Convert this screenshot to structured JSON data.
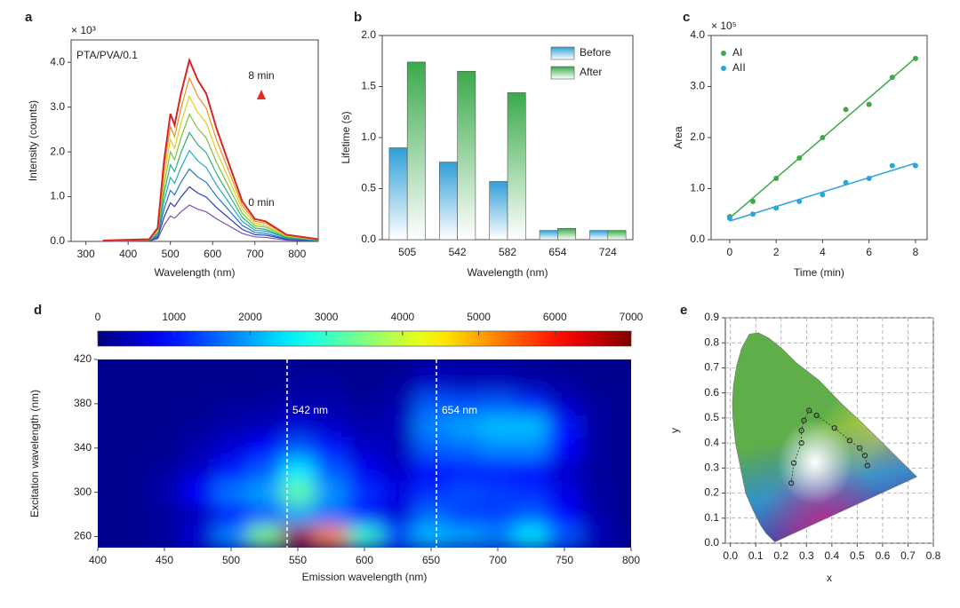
{
  "chart_data": [
    {
      "type": "line",
      "panel": "a",
      "annotations": [
        "PTA/PVA/0.1",
        "8 min",
        "0 min"
      ],
      "multiplier": "× 10³",
      "x_label": "Wavelength (nm)",
      "y_label": "Intensity (counts)",
      "xlim": [
        265,
        850
      ],
      "ylim": [
        0,
        4.5
      ],
      "xticks": [
        300,
        400,
        500,
        600,
        700,
        800
      ],
      "yticks": [
        {
          "value": 0,
          "label": "0.0"
        },
        {
          "value": 1,
          "label": "1.0"
        },
        {
          "value": 2,
          "label": "2.0"
        },
        {
          "value": 3,
          "label": "3.0"
        },
        {
          "value": 4,
          "label": "4.0"
        }
      ],
      "x": [
        340,
        450,
        470,
        485,
        500,
        510,
        525,
        545,
        565,
        585,
        610,
        640,
        670,
        700,
        725,
        775,
        850
      ],
      "series": [
        {
          "color": "#7b52ae",
          "values": [
            0.0,
            0.01,
            0.06,
            0.36,
            0.57,
            0.52,
            0.66,
            0.81,
            0.72,
            0.66,
            0.5,
            0.34,
            0.18,
            0.1,
            0.09,
            0.03,
            0.01
          ]
        },
        {
          "color": "#2b3bb8",
          "values": [
            0.01,
            0.02,
            0.09,
            0.54,
            0.86,
            0.78,
            0.99,
            1.22,
            1.08,
            0.99,
            0.75,
            0.51,
            0.27,
            0.15,
            0.14,
            0.05,
            0.02
          ]
        },
        {
          "color": "#1f78c8",
          "values": [
            0.01,
            0.02,
            0.12,
            0.72,
            1.14,
            1.04,
            1.32,
            1.62,
            1.44,
            1.32,
            1.0,
            0.68,
            0.36,
            0.2,
            0.18,
            0.06,
            0.02
          ]
        },
        {
          "color": "#22a7c9",
          "values": [
            0.01,
            0.03,
            0.15,
            0.9,
            1.43,
            1.3,
            1.65,
            2.03,
            1.8,
            1.65,
            1.25,
            0.85,
            0.45,
            0.25,
            0.23,
            0.08,
            0.03
          ]
        },
        {
          "color": "#2bb07a",
          "values": [
            0.01,
            0.03,
            0.18,
            1.08,
            1.71,
            1.56,
            1.98,
            2.43,
            2.16,
            1.98,
            1.5,
            1.02,
            0.54,
            0.3,
            0.27,
            0.09,
            0.03
          ]
        },
        {
          "color": "#7cc23a",
          "values": [
            0.01,
            0.04,
            0.21,
            1.26,
            2.0,
            1.82,
            2.31,
            2.84,
            2.52,
            2.31,
            1.75,
            1.19,
            0.63,
            0.35,
            0.32,
            0.11,
            0.04
          ]
        },
        {
          "color": "#e0d020",
          "values": [
            0.02,
            0.04,
            0.24,
            1.44,
            2.28,
            2.08,
            2.64,
            3.24,
            2.88,
            2.64,
            2.0,
            1.36,
            0.72,
            0.4,
            0.36,
            0.12,
            0.04
          ]
        },
        {
          "color": "#f39020",
          "values": [
            0.02,
            0.05,
            0.27,
            1.62,
            2.57,
            2.34,
            2.97,
            3.65,
            3.24,
            2.97,
            2.25,
            1.53,
            0.81,
            0.45,
            0.41,
            0.14,
            0.05
          ]
        },
        {
          "color": "#d62728",
          "values": [
            0.02,
            0.05,
            0.3,
            1.8,
            2.85,
            2.6,
            3.3,
            4.05,
            3.6,
            3.3,
            2.5,
            1.7,
            0.9,
            0.5,
            0.45,
            0.15,
            0.05
          ]
        }
      ]
    },
    {
      "type": "bar",
      "panel": "b",
      "x_label": "Wavelength (nm)",
      "y_label": "Lifetime (s)",
      "legend": "top-right",
      "categories": [
        "505",
        "542",
        "582",
        "654",
        "724"
      ],
      "ylim": [
        0,
        2.0
      ],
      "yticks": [
        {
          "value": 0,
          "label": "0.0"
        },
        {
          "value": 0.5,
          "label": "0.5"
        },
        {
          "value": 1,
          "label": "1.0"
        },
        {
          "value": 1.5,
          "label": "1.5"
        },
        {
          "value": 2,
          "label": "2.0"
        }
      ],
      "series": [
        {
          "name": "Before",
          "color": "#2f9fd8",
          "values": [
            0.9,
            0.76,
            0.57,
            0.09,
            0.09
          ]
        },
        {
          "name": "After",
          "color": "#3aaa4a",
          "values": [
            1.74,
            1.65,
            1.44,
            0.11,
            0.09
          ]
        }
      ]
    },
    {
      "type": "scatter",
      "panel": "c",
      "x_label": "Time (min)",
      "y_label": "Area",
      "multiplier": "× 10⁵",
      "fit": true,
      "legend": "top-left",
      "xlim": [
        -0.8,
        8.5
      ],
      "ylim": [
        0,
        4.0
      ],
      "xticks": [
        0,
        2,
        4,
        6,
        8
      ],
      "yticks": [
        {
          "value": 0,
          "label": "0.0"
        },
        {
          "value": 1,
          "label": "1.0"
        },
        {
          "value": 2,
          "label": "2.0"
        },
        {
          "value": 3,
          "label": "3.0"
        },
        {
          "value": 4,
          "label": "4.0"
        }
      ],
      "x": [
        0,
        1,
        2,
        3,
        4,
        5,
        6,
        7,
        8
      ],
      "series": [
        {
          "name": "AI",
          "color": "#3daa48",
          "values": [
            0.45,
            0.75,
            1.2,
            1.6,
            2.0,
            2.55,
            2.65,
            3.18,
            3.55
          ]
        },
        {
          "name": "AII",
          "color": "#2aa6dd",
          "values": [
            0.42,
            0.5,
            0.62,
            0.75,
            0.88,
            1.12,
            1.2,
            1.45,
            1.45
          ]
        }
      ]
    },
    {
      "type": "heatmap",
      "panel": "d",
      "x_label": "Emission wavelength (nm)",
      "y_label": "Excitation wavelength (nm)",
      "xlim": [
        400,
        800
      ],
      "ylim": [
        250,
        420
      ],
      "xticks": [
        400,
        450,
        500,
        550,
        600,
        650,
        700,
        750,
        800
      ],
      "yticks": [
        260,
        300,
        340,
        380,
        420
      ],
      "colorbar": {
        "lim": [
          0,
          7000
        ],
        "ticks": [
          0,
          1000,
          2000,
          3000,
          4000,
          5000,
          6000,
          7000
        ]
      },
      "markers": [
        {
          "value": 542,
          "label": "542 nm"
        },
        {
          "value": 654,
          "label": "654 nm"
        }
      ],
      "x": [
        400,
        425,
        450,
        475,
        500,
        525,
        550,
        575,
        600,
        625,
        650,
        675,
        700,
        725,
        750,
        775,
        800
      ],
      "y": [
        260,
        280,
        300,
        320,
        340,
        360,
        380,
        400,
        420
      ],
      "z": [
        [
          100,
          100,
          200,
          600,
          1800,
          3500,
          6800,
          5200,
          3000,
          1500,
          2200,
          2000,
          1800,
          2500,
          1500,
          400,
          100
        ],
        [
          100,
          100,
          200,
          400,
          900,
          1400,
          2000,
          1600,
          1000,
          600,
          1600,
          1300,
          1300,
          1500,
          900,
          300,
          100
        ],
        [
          100,
          100,
          300,
          900,
          1700,
          2000,
          3300,
          1900,
          1200,
          700,
          1200,
          1400,
          1300,
          1200,
          700,
          200,
          100
        ],
        [
          100,
          100,
          200,
          500,
          1000,
          1500,
          2500,
          1500,
          800,
          500,
          900,
          1000,
          1000,
          900,
          500,
          200,
          100
        ],
        [
          100,
          100,
          100,
          300,
          600,
          900,
          1500,
          1000,
          500,
          400,
          1500,
          1600,
          1800,
          1800,
          900,
          200,
          100
        ],
        [
          100,
          100,
          100,
          200,
          300,
          400,
          600,
          500,
          300,
          400,
          1800,
          2000,
          2200,
          2200,
          1000,
          200,
          100
        ],
        [
          100,
          100,
          100,
          100,
          200,
          200,
          300,
          300,
          200,
          300,
          1500,
          1400,
          1500,
          1200,
          500,
          200,
          100
        ],
        [
          100,
          100,
          100,
          100,
          100,
          100,
          200,
          200,
          100,
          200,
          500,
          400,
          400,
          300,
          200,
          100,
          100
        ],
        [
          100,
          100,
          100,
          100,
          100,
          100,
          100,
          100,
          100,
          100,
          200,
          200,
          200,
          100,
          100,
          100,
          100
        ]
      ]
    },
    {
      "type": "chromaticity",
      "panel": "e",
      "x_label": "x",
      "y_label": "y",
      "grid": true,
      "xlim": [
        -0.02,
        0.8
      ],
      "ylim": [
        0,
        0.9
      ],
      "xticks": [
        {
          "value": 0,
          "label": "0.0"
        },
        {
          "value": 0.1,
          "label": "0.1"
        },
        {
          "value": 0.2,
          "label": "0.2"
        },
        {
          "value": 0.3,
          "label": "0.3"
        },
        {
          "value": 0.4,
          "label": "0.4"
        },
        {
          "value": 0.5,
          "label": "0.5"
        },
        {
          "value": 0.6,
          "label": "0.6"
        },
        {
          "value": 0.7,
          "label": "0.7"
        },
        {
          "value": 0.8,
          "label": "0.8"
        }
      ],
      "yticks": [
        {
          "value": 0,
          "label": "0.0"
        },
        {
          "value": 0.1,
          "label": "0.1"
        },
        {
          "value": 0.2,
          "label": "0.2"
        },
        {
          "value": 0.3,
          "label": "0.3"
        },
        {
          "value": 0.4,
          "label": "0.4"
        },
        {
          "value": 0.5,
          "label": "0.5"
        },
        {
          "value": 0.6,
          "label": "0.6"
        },
        {
          "value": 0.7,
          "label": "0.7"
        },
        {
          "value": 0.8,
          "label": "0.8"
        },
        {
          "value": 0.9,
          "label": "0.9"
        }
      ],
      "x": [
        0.24,
        0.25,
        0.28,
        0.28,
        0.29,
        0.31,
        0.34,
        0.41,
        0.47,
        0.51,
        0.53,
        0.54
      ],
      "y": [
        0.24,
        0.32,
        0.4,
        0.45,
        0.49,
        0.53,
        0.51,
        0.46,
        0.41,
        0.38,
        0.35,
        0.31
      ]
    }
  ]
}
